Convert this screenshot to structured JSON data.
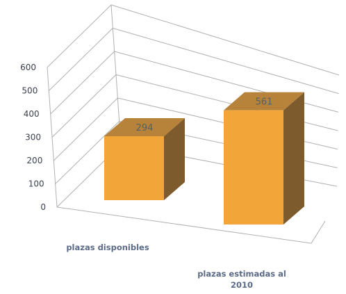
{
  "chart_data": {
    "type": "bar",
    "categories": [
      "plazas disponibles",
      "plazas estimadas al 2010"
    ],
    "series": [
      {
        "values": [
          294,
          561
        ]
      }
    ],
    "title": "",
    "xlabel": "",
    "ylabel": "",
    "ylim": [
      0,
      600
    ],
    "yticks": [
      "0",
      "100",
      "200",
      "300",
      "400",
      "500",
      "600"
    ],
    "data_labels": [
      "294",
      "561"
    ],
    "grid": true,
    "three_d": true,
    "colors": {
      "bar_front": "#f2a63a",
      "bar_top": "#b7823a",
      "bar_side": "#7e5b2c",
      "grid": "#b0b0b0",
      "tick_text": "#3a3f4d",
      "category_text": "#5b6a86"
    }
  }
}
